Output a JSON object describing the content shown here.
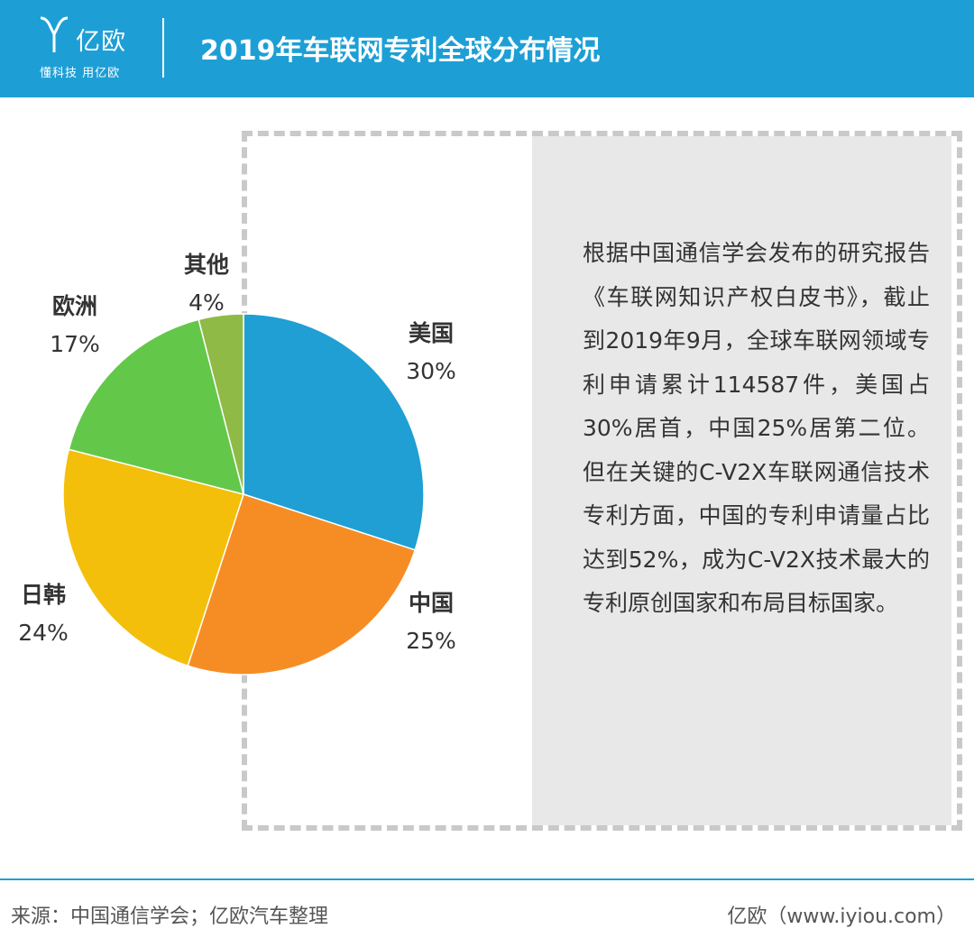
{
  "header": {
    "logo_name": "亿欧",
    "logo_slogan": "懂科技 用亿欧",
    "title": "2019年车联网专利全球分布情况"
  },
  "colors": {
    "header_bg": "#1d9fd6",
    "panel_bg": "#e8e8e8",
    "frame_border": "#c9c9c9"
  },
  "description": "根据中国通信学会发布的研究报告《车联网知识产权白皮书》，截止到2019年9月，全球车联网领域专利申请累计114587件，美国占30%居首，中国25%居第二位。但在关键的C-V2X车联网通信技术专利方面，中国的专利申请量占比达到52%，成为C-V2X技术最大的专利原创国家和布局目标国家。",
  "chart_data": {
    "type": "pie",
    "title": "2019年车联网专利全球分布情况",
    "start": "12 o'clock, clockwise",
    "slices": [
      {
        "label": "美国",
        "value": 30,
        "value_label": "30%",
        "color": "#1f9fd4"
      },
      {
        "label": "中国",
        "value": 25,
        "value_label": "25%",
        "color": "#f68d24"
      },
      {
        "label": "日韩",
        "value": 24,
        "value_label": "24%",
        "color": "#f4bf0a"
      },
      {
        "label": "欧洲",
        "value": 17,
        "value_label": "17%",
        "color": "#63c84a"
      },
      {
        "label": "其他",
        "value": 4,
        "value_label": "4%",
        "color": "#8fba46"
      }
    ]
  },
  "footer": {
    "source": "来源：中国通信学会；亿欧汽车整理",
    "site": "亿欧（www.iyiou.com）"
  }
}
